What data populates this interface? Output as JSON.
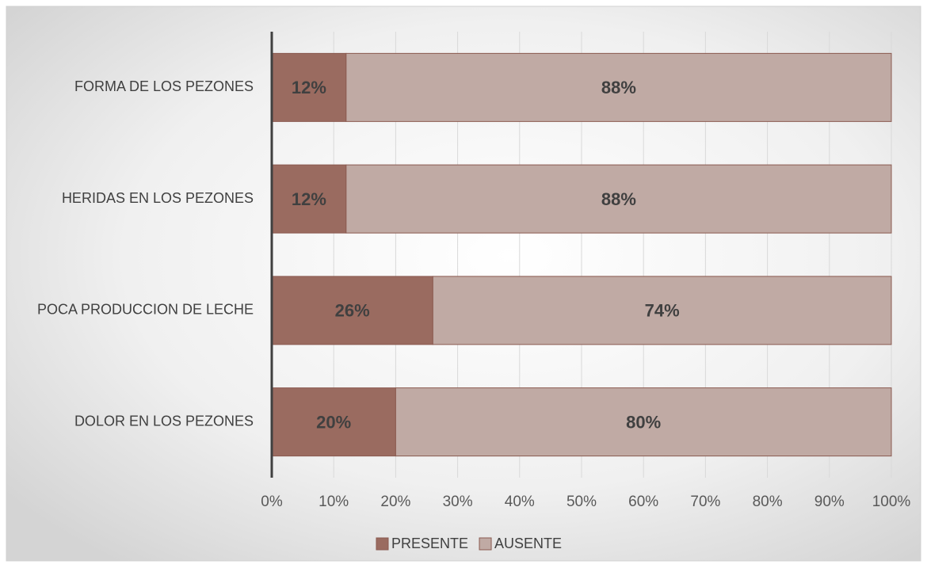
{
  "chart_data": {
    "type": "stacked_bar_horizontal",
    "categories": [
      "FORMA DE LOS PEZONES",
      "HERIDAS EN LOS PEZONES",
      "POCA PRODUCCION DE LECHE",
      "DOLOR EN LOS PEZONES"
    ],
    "series": [
      {
        "name": "PRESENTE",
        "color": "#9a6b60",
        "values": [
          12,
          12,
          26,
          20
        ],
        "value_labels": [
          "12%",
          "12%",
          "26%",
          "20%"
        ]
      },
      {
        "name": "AUSENTE",
        "color": "#c0aaa4",
        "values": [
          88,
          88,
          74,
          80
        ],
        "value_labels": [
          "88%",
          "88%",
          "74%",
          "80%"
        ]
      }
    ],
    "xlim": [
      0,
      100
    ],
    "xticks": [
      {
        "value": 0,
        "label": "0%"
      },
      {
        "value": 10,
        "label": "10%"
      },
      {
        "value": 20,
        "label": "20%"
      },
      {
        "value": 30,
        "label": "30%"
      },
      {
        "value": 40,
        "label": "40%"
      },
      {
        "value": 50,
        "label": "50%"
      },
      {
        "value": 60,
        "label": "60%"
      },
      {
        "value": 70,
        "label": "70%"
      },
      {
        "value": 80,
        "label": "80%"
      },
      {
        "value": 90,
        "label": "90%"
      },
      {
        "value": 100,
        "label": "100%"
      }
    ],
    "grid": true,
    "legend": "bottom"
  }
}
